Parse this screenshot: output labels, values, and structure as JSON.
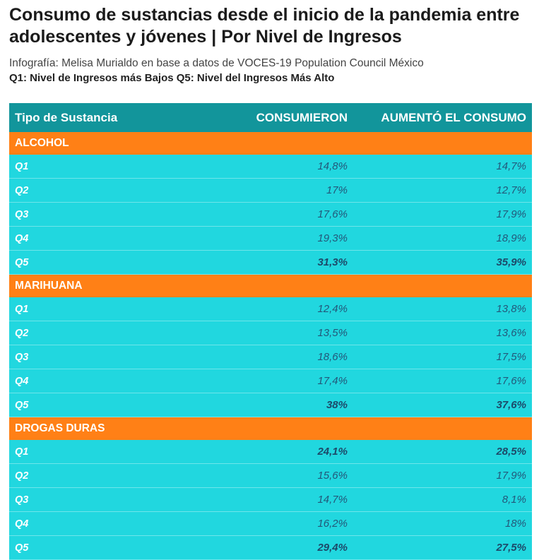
{
  "header": {
    "title": "Consumo de sustancias desde el inicio de la pandemia entre adolescentes y jóvenes | Por Nivel de Ingresos",
    "subtitle": "Infografía: Melisa Murialdo en base a datos de VOCES-19 Population Council México",
    "note": "Q1: Nivel de Ingresos más Bajos Q5: Nivel del Ingresos Más Alto"
  },
  "table": {
    "columns": [
      "Tipo de Sustancia",
      "CONSUMIERON",
      "AUMENTÓ EL CONSUMO"
    ],
    "groups": [
      {
        "name": "ALCOHOL",
        "rows": [
          {
            "q": "Q1",
            "consumieron": "14,8%",
            "aumento": "14,7%",
            "bold": false
          },
          {
            "q": "Q2",
            "consumieron": "17%",
            "aumento": "12,7%",
            "bold": false
          },
          {
            "q": "Q3",
            "consumieron": "17,6%",
            "aumento": "17,9%",
            "bold": false
          },
          {
            "q": "Q4",
            "consumieron": "19,3%",
            "aumento": "18,9%",
            "bold": false
          },
          {
            "q": "Q5",
            "consumieron": "31,3%",
            "aumento": "35,9%",
            "bold": true
          }
        ]
      },
      {
        "name": "MARIHUANA",
        "rows": [
          {
            "q": "Q1",
            "consumieron": "12,4%",
            "aumento": "13,8%",
            "bold": false
          },
          {
            "q": "Q2",
            "consumieron": "13,5%",
            "aumento": "13,6%",
            "bold": false
          },
          {
            "q": "Q3",
            "consumieron": "18,6%",
            "aumento": "17,5%",
            "bold": false
          },
          {
            "q": "Q4",
            "consumieron": "17,4%",
            "aumento": "17,6%",
            "bold": false
          },
          {
            "q": "Q5",
            "consumieron": "38%",
            "aumento": "37,6%",
            "bold": true
          }
        ]
      },
      {
        "name": "DROGAS DURAS",
        "rows": [
          {
            "q": "Q1",
            "consumieron": "24,1%",
            "aumento": "28,5%",
            "bold": true
          },
          {
            "q": "Q2",
            "consumieron": "15,6%",
            "aumento": "17,9%",
            "bold": false
          },
          {
            "q": "Q3",
            "consumieron": "14,7%",
            "aumento": "8,1%",
            "bold": false
          },
          {
            "q": "Q4",
            "consumieron": "16,2%",
            "aumento": "18%",
            "bold": false
          },
          {
            "q": "Q5",
            "consumieron": "29,4%",
            "aumento": "27,5%",
            "bold": true
          }
        ]
      }
    ]
  },
  "colors": {
    "header_bg": "#12959b",
    "group_bg": "#ff8016",
    "row_bg": "#21d7df"
  }
}
